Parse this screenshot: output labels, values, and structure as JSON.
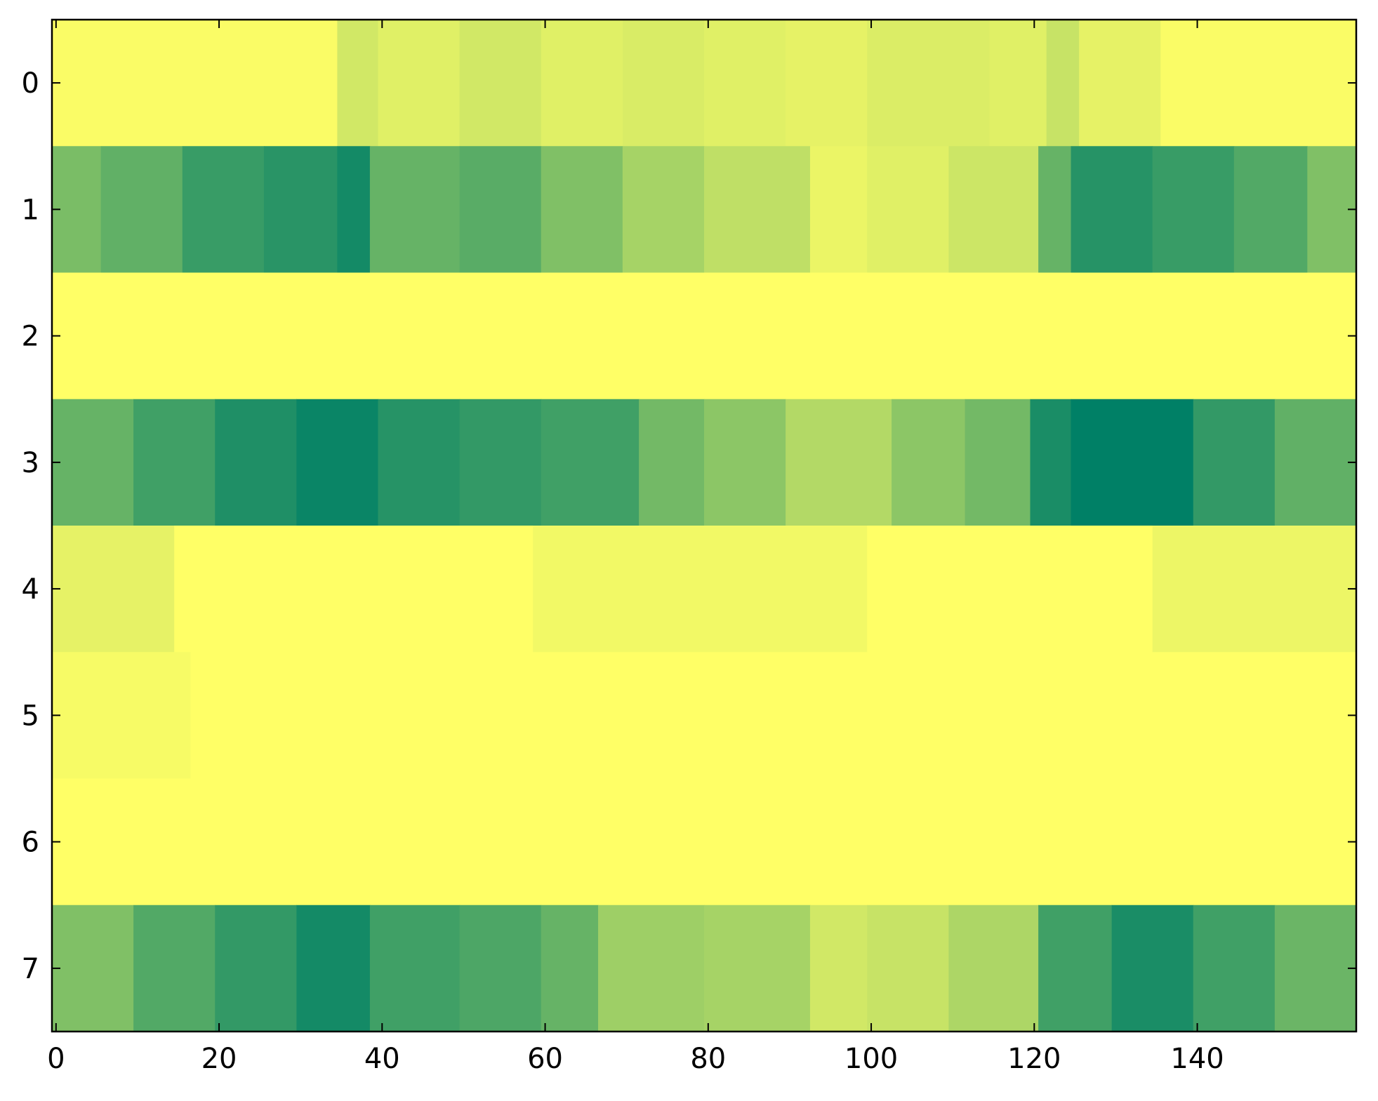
{
  "chart_data": {
    "type": "heatmap",
    "title": "",
    "xlabel": "",
    "ylabel": "",
    "colormap": "summer",
    "colormap_colors": [
      "#008066",
      "#ffff66"
    ],
    "x_range": [
      -0.5,
      159.5
    ],
    "y_range": [
      -0.5,
      7.5
    ],
    "x_ticks": [
      "0",
      "20",
      "40",
      "60",
      "80",
      "100",
      "120",
      "140"
    ],
    "y_ticks": [
      "0",
      "1",
      "2",
      "3",
      "4",
      "5",
      "6",
      "7"
    ],
    "grid": false,
    "colorbar": false,
    "rows": [
      {
        "row": 0,
        "segments": [
          {
            "from": 0,
            "to": 34,
            "value": 0.98
          },
          {
            "from": 35,
            "to": 39,
            "value": 0.82
          },
          {
            "from": 40,
            "to": 49,
            "value": 0.88
          },
          {
            "from": 50,
            "to": 59,
            "value": 0.82
          },
          {
            "from": 60,
            "to": 69,
            "value": 0.88
          },
          {
            "from": 70,
            "to": 79,
            "value": 0.85
          },
          {
            "from": 80,
            "to": 89,
            "value": 0.88
          },
          {
            "from": 90,
            "to": 99,
            "value": 0.9
          },
          {
            "from": 100,
            "to": 114,
            "value": 0.86
          },
          {
            "from": 115,
            "to": 121,
            "value": 0.88
          },
          {
            "from": 122,
            "to": 125,
            "value": 0.78
          },
          {
            "from": 126,
            "to": 135,
            "value": 0.9
          },
          {
            "from": 136,
            "to": 159,
            "value": 0.98
          }
        ]
      },
      {
        "row": 1,
        "segments": [
          {
            "from": 0,
            "to": 5,
            "value": 0.48
          },
          {
            "from": 6,
            "to": 15,
            "value": 0.38
          },
          {
            "from": 16,
            "to": 25,
            "value": 0.22
          },
          {
            "from": 26,
            "to": 34,
            "value": 0.16
          },
          {
            "from": 35,
            "to": 38,
            "value": 0.08
          },
          {
            "from": 39,
            "to": 49,
            "value": 0.4
          },
          {
            "from": 50,
            "to": 59,
            "value": 0.35
          },
          {
            "from": 60,
            "to": 69,
            "value": 0.5
          },
          {
            "from": 70,
            "to": 79,
            "value": 0.65
          },
          {
            "from": 80,
            "to": 92,
            "value": 0.75
          },
          {
            "from": 93,
            "to": 99,
            "value": 0.92
          },
          {
            "from": 100,
            "to": 109,
            "value": 0.88
          },
          {
            "from": 110,
            "to": 120,
            "value": 0.8
          },
          {
            "from": 121,
            "to": 124,
            "value": 0.4
          },
          {
            "from": 125,
            "to": 134,
            "value": 0.15
          },
          {
            "from": 135,
            "to": 144,
            "value": 0.22
          },
          {
            "from": 145,
            "to": 153,
            "value": 0.32
          },
          {
            "from": 154,
            "to": 159,
            "value": 0.5
          }
        ]
      },
      {
        "row": 2,
        "segments": [
          {
            "from": 0,
            "to": 159,
            "value": 1.0
          }
        ]
      },
      {
        "row": 3,
        "segments": [
          {
            "from": 0,
            "to": 9,
            "value": 0.4
          },
          {
            "from": 10,
            "to": 19,
            "value": 0.25
          },
          {
            "from": 20,
            "to": 29,
            "value": 0.12
          },
          {
            "from": 30,
            "to": 39,
            "value": 0.04
          },
          {
            "from": 40,
            "to": 49,
            "value": 0.15
          },
          {
            "from": 50,
            "to": 59,
            "value": 0.2
          },
          {
            "from": 60,
            "to": 71,
            "value": 0.25
          },
          {
            "from": 72,
            "to": 79,
            "value": 0.45
          },
          {
            "from": 80,
            "to": 89,
            "value": 0.55
          },
          {
            "from": 90,
            "to": 102,
            "value": 0.7
          },
          {
            "from": 103,
            "to": 111,
            "value": 0.55
          },
          {
            "from": 112,
            "to": 119,
            "value": 0.45
          },
          {
            "from": 120,
            "to": 124,
            "value": 0.1
          },
          {
            "from": 125,
            "to": 139,
            "value": 0.0
          },
          {
            "from": 140,
            "to": 149,
            "value": 0.2
          },
          {
            "from": 150,
            "to": 159,
            "value": 0.38
          }
        ]
      },
      {
        "row": 4,
        "segments": [
          {
            "from": 0,
            "to": 14,
            "value": 0.9
          },
          {
            "from": 15,
            "to": 58,
            "value": 1.0
          },
          {
            "from": 59,
            "to": 99,
            "value": 0.95
          },
          {
            "from": 100,
            "to": 134,
            "value": 1.0
          },
          {
            "from": 135,
            "to": 159,
            "value": 0.93
          }
        ]
      },
      {
        "row": 5,
        "segments": [
          {
            "from": 0,
            "to": 16,
            "value": 0.97
          },
          {
            "from": 17,
            "to": 159,
            "value": 1.0
          }
        ]
      },
      {
        "row": 6,
        "segments": [
          {
            "from": 0,
            "to": 159,
            "value": 1.0
          }
        ]
      },
      {
        "row": 7,
        "segments": [
          {
            "from": 0,
            "to": 9,
            "value": 0.5
          },
          {
            "from": 10,
            "to": 19,
            "value": 0.32
          },
          {
            "from": 20,
            "to": 29,
            "value": 0.2
          },
          {
            "from": 30,
            "to": 38,
            "value": 0.08
          },
          {
            "from": 39,
            "to": 49,
            "value": 0.25
          },
          {
            "from": 50,
            "to": 59,
            "value": 0.3
          },
          {
            "from": 60,
            "to": 66,
            "value": 0.4
          },
          {
            "from": 67,
            "to": 79,
            "value": 0.62
          },
          {
            "from": 80,
            "to": 92,
            "value": 0.65
          },
          {
            "from": 93,
            "to": 99,
            "value": 0.82
          },
          {
            "from": 100,
            "to": 109,
            "value": 0.78
          },
          {
            "from": 110,
            "to": 120,
            "value": 0.68
          },
          {
            "from": 121,
            "to": 129,
            "value": 0.25
          },
          {
            "from": 130,
            "to": 139,
            "value": 0.1
          },
          {
            "from": 140,
            "to": 149,
            "value": 0.25
          },
          {
            "from": 150,
            "to": 159,
            "value": 0.42
          }
        ]
      }
    ]
  }
}
